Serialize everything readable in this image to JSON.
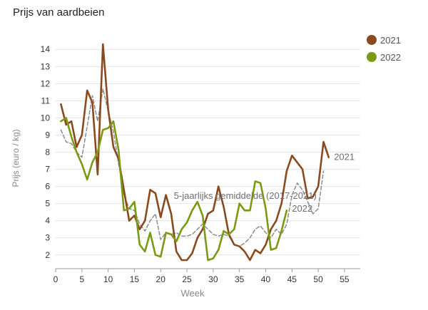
{
  "chart_data": {
    "type": "line",
    "title": "Prijs van aardbeien",
    "xlabel": "Week",
    "ylabel": "Prijs (euro / kg)",
    "xlim": [
      0,
      58
    ],
    "ylim": [
      1.2,
      14.8
    ],
    "xticks": [
      0,
      5,
      10,
      15,
      20,
      25,
      30,
      35,
      40,
      45,
      50,
      55
    ],
    "yticks": [
      2,
      3,
      4,
      5,
      6,
      7,
      8,
      9,
      10,
      11,
      12,
      13,
      14
    ],
    "grid": "horizontal",
    "legend_position": "top-right",
    "series": [
      {
        "name": "2021",
        "color": "#8b4a1e",
        "style": "solid",
        "x": [
          1,
          2,
          3,
          4,
          5,
          6,
          7,
          8,
          9,
          10,
          11,
          12,
          13,
          14,
          15,
          16,
          17,
          18,
          19,
          20,
          21,
          22,
          23,
          24,
          25,
          26,
          27,
          28,
          29,
          30,
          31,
          32,
          33,
          34,
          35,
          36,
          37,
          38,
          39,
          40,
          41,
          42,
          43,
          44,
          45,
          46,
          47,
          48,
          49,
          50,
          51,
          52
        ],
        "y": [
          10.8,
          9.6,
          9.8,
          8.3,
          9.0,
          11.6,
          10.9,
          6.7,
          14.3,
          10.5,
          8.3,
          7.6,
          5.8,
          4.0,
          4.3,
          3.5,
          4.0,
          5.8,
          5.6,
          4.2,
          5.5,
          4.4,
          2.2,
          1.7,
          1.7,
          2.1,
          3.0,
          3.5,
          4.4,
          4.6,
          6.0,
          4.8,
          3.2,
          2.6,
          2.5,
          2.2,
          1.7,
          2.3,
          2.1,
          2.6,
          3.5,
          4.0,
          5.0,
          6.9,
          7.8,
          7.4,
          7.0,
          5.3,
          5.4,
          6.0,
          8.6,
          7.7
        ]
      },
      {
        "name": "2022",
        "color": "#7a9a14",
        "style": "solid",
        "x": [
          1,
          2,
          3,
          4,
          5,
          6,
          7,
          8,
          9,
          10,
          11,
          12,
          13,
          14,
          15,
          16,
          17,
          18,
          19,
          20,
          21,
          22,
          23,
          24,
          25,
          26,
          27,
          28,
          29,
          30,
          31,
          32,
          33,
          34,
          35,
          36,
          37,
          38,
          39,
          40,
          41,
          42,
          43,
          44
        ],
        "y": [
          9.8,
          10.0,
          8.9,
          8.0,
          7.3,
          6.4,
          7.4,
          8.0,
          9.3,
          9.4,
          9.8,
          8.1,
          4.6,
          4.7,
          5.1,
          2.6,
          2.2,
          3.3,
          2.0,
          1.9,
          3.3,
          3.2,
          2.8,
          3.5,
          3.9,
          4.6,
          5.1,
          4.3,
          1.7,
          1.8,
          2.3,
          3.4,
          3.2,
          3.5,
          5.0,
          4.6,
          4.6,
          6.3,
          6.2,
          4.7,
          2.3,
          2.4,
          3.4,
          4.6
        ]
      },
      {
        "name": "5-jaarlijks gemiddelde (2017-2021)",
        "color": "#8c8c8c",
        "style": "dashed",
        "x": [
          1,
          2,
          3,
          4,
          5,
          6,
          7,
          8,
          9,
          10,
          11,
          12,
          13,
          14,
          15,
          16,
          17,
          18,
          19,
          20,
          21,
          22,
          23,
          24,
          25,
          26,
          27,
          28,
          29,
          30,
          31,
          32,
          33,
          34,
          35,
          36,
          37,
          38,
          39,
          40,
          41,
          42,
          43,
          44,
          45,
          46,
          47,
          48,
          49,
          50,
          51
        ],
        "y": [
          9.3,
          8.6,
          8.5,
          8.0,
          7.7,
          9.5,
          11.3,
          9.8,
          11.7,
          10.4,
          9.2,
          7.3,
          5.5,
          4.7,
          4.6,
          3.8,
          3.4,
          4.0,
          4.4,
          2.9,
          3.3,
          3.2,
          3.3,
          3.1,
          3.1,
          3.2,
          3.5,
          3.8,
          3.5,
          3.2,
          3.1,
          3.2,
          3.1,
          2.6,
          2.5,
          2.7,
          3.0,
          3.5,
          3.7,
          3.3,
          3.0,
          3.5,
          3.2,
          3.8,
          5.5,
          6.2,
          5.8,
          5.1,
          4.4,
          4.7,
          6.9
        ]
      }
    ],
    "annotations": [
      {
        "text": "2021",
        "x": 53,
        "y": 7.7
      },
      {
        "text": "5-jaarlijks gemiddelde (2017-2021)",
        "x": 22.5,
        "y": 5.45
      },
      {
        "text": "2022",
        "x": 45,
        "y": 4.7
      }
    ]
  }
}
